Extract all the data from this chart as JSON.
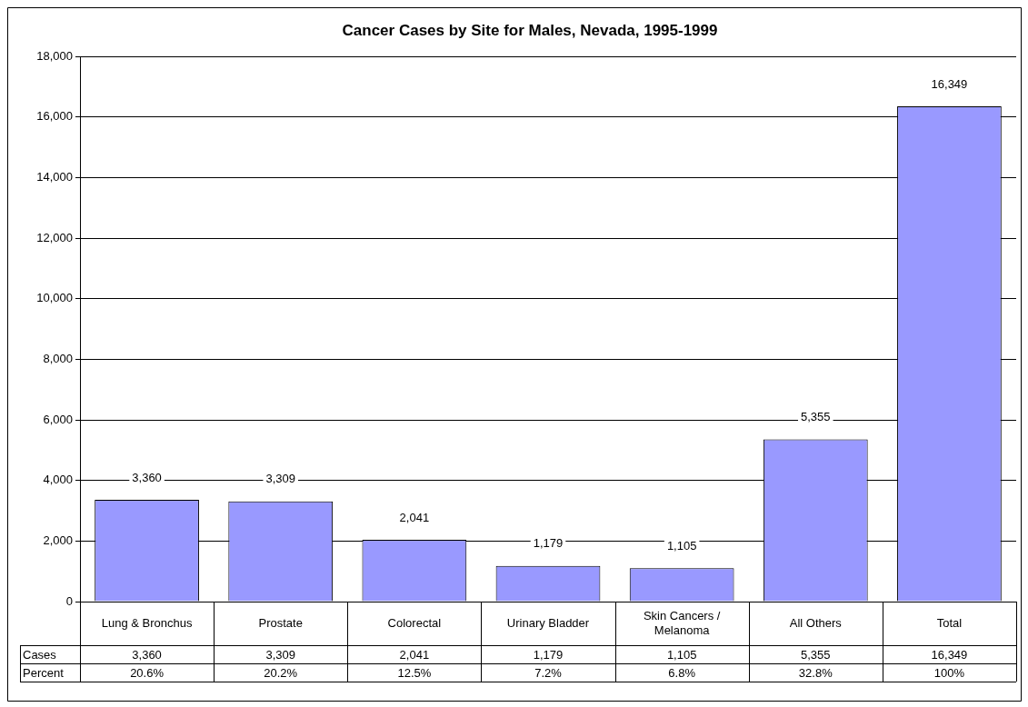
{
  "chart_data": {
    "type": "bar",
    "title": "Cancer Cases by Site for Males, Nevada, 1995-1999",
    "categories": [
      "Lung & Bronchus",
      "Prostate",
      "Colorectal",
      "Urinary Bladder",
      "Skin Cancers / Melanoma",
      "All Others",
      "Total"
    ],
    "values": [
      3360,
      3309,
      2041,
      1179,
      1105,
      5355,
      16349
    ],
    "color": "#9999ff",
    "value_labels": [
      "3,360",
      "3,309",
      "2,041",
      "1,179",
      "1,105",
      "5,355",
      "16,349"
    ],
    "ylim": [
      0,
      18000
    ],
    "yticks": [
      0,
      {
        "value": 2000,
        "label": "2,000"
      },
      {
        "value": 4000,
        "label": "4,000"
      },
      {
        "value": 6000,
        "label": "6,000"
      },
      {
        "value": 8000,
        "label": "8,000"
      },
      {
        "value": 10000,
        "label": "10,000"
      },
      {
        "value": 12000,
        "label": "12,000"
      },
      {
        "value": 14000,
        "label": "14,000"
      },
      {
        "value": 16000,
        "label": "16,000"
      },
      {
        "value": 18000,
        "label": "18,000"
      }
    ],
    "grid": "y",
    "annotations": [
      "Cases",
      "Percent",
      "20.6%",
      "20.2%",
      "12.5%",
      "7.2%",
      "6.8%",
      "32.8%",
      "100%"
    ]
  }
}
